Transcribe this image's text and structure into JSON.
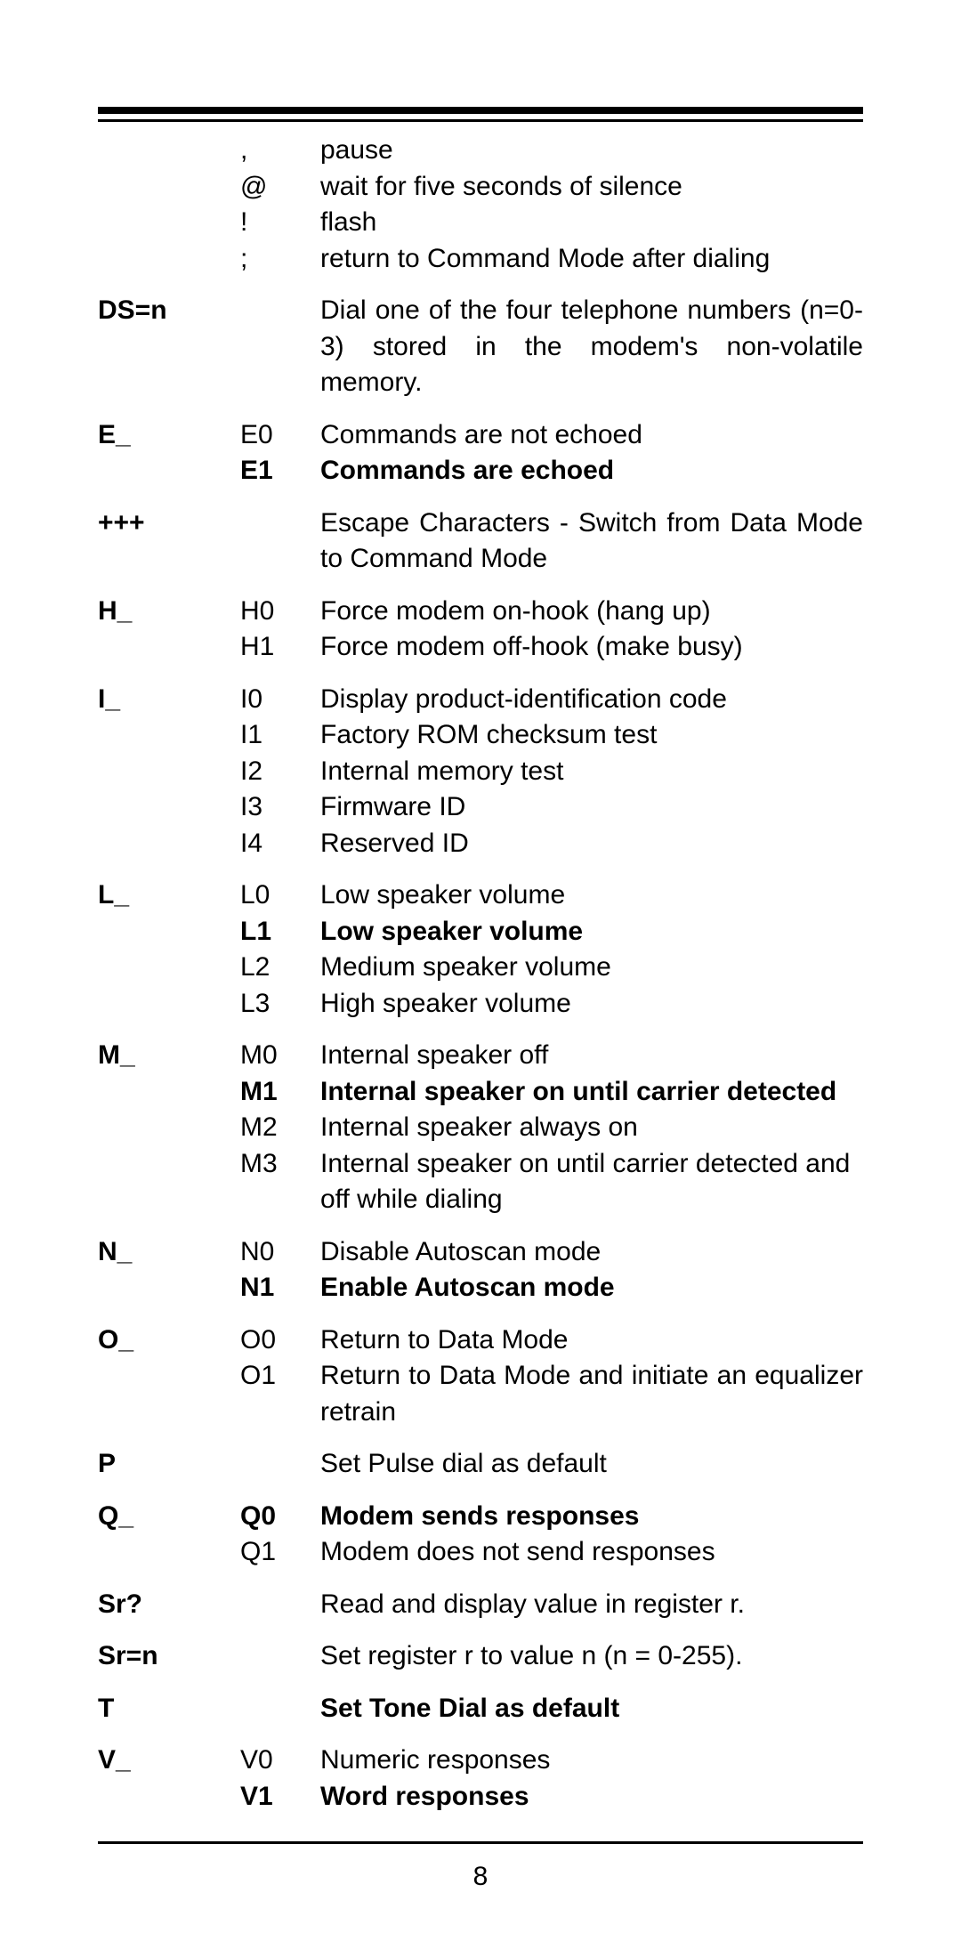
{
  "rows": [
    {
      "c1": "",
      "c2": ",",
      "c3": "pause",
      "bold": false,
      "newGroup": false
    },
    {
      "c1": "",
      "c2": "@",
      "c3": "wait for five seconds of silence",
      "bold": false,
      "newGroup": false
    },
    {
      "c1": "",
      "c2": "!",
      "c3": "flash",
      "bold": false,
      "newGroup": false
    },
    {
      "c1": "",
      "c2": ";",
      "c3": "return to Command Mode after dialing",
      "bold": false,
      "newGroup": false
    },
    {
      "c1": "DS=n",
      "c2": "",
      "c3": "Dial one of the four telephone numbers (n=0-3) stored in the modem's non-volatile memory.",
      "bold": false,
      "newGroup": true,
      "justify": true
    },
    {
      "c1": "E_",
      "c2": "E0",
      "c3": "Commands are not echoed",
      "bold": false,
      "newGroup": true
    },
    {
      "c1": "",
      "c2": "E1",
      "c3": "Commands are echoed",
      "bold": true,
      "newGroup": false
    },
    {
      "c1": "+++",
      "c2": "",
      "c3": "Escape Characters - Switch from Data Mode to Command Mode",
      "bold": false,
      "newGroup": true,
      "justify": true
    },
    {
      "c1": "H_",
      "c2": "H0",
      "c3": "Force modem on-hook (hang up)",
      "bold": false,
      "newGroup": true
    },
    {
      "c1": "",
      "c2": "H1",
      "c3": "Force modem off-hook (make busy)",
      "bold": false,
      "newGroup": false
    },
    {
      "c1": "I_",
      "c2": "I0",
      "c3": "Display product-identification code",
      "bold": false,
      "newGroup": true
    },
    {
      "c1": "",
      "c2": "I1",
      "c3": "Factory ROM checksum test",
      "bold": false,
      "newGroup": false
    },
    {
      "c1": "",
      "c2": "I2",
      "c3": "Internal memory test",
      "bold": false,
      "newGroup": false
    },
    {
      "c1": "",
      "c2": "I3",
      "c3": "Firmware ID",
      "bold": false,
      "newGroup": false
    },
    {
      "c1": "",
      "c2": "I4",
      "c3": "Reserved ID",
      "bold": false,
      "newGroup": false
    },
    {
      "c1": "L_",
      "c2": "L0",
      "c3": "Low speaker volume",
      "bold": false,
      "newGroup": true
    },
    {
      "c1": "",
      "c2": "L1",
      "c3": "Low speaker volume",
      "bold": true,
      "newGroup": false
    },
    {
      "c1": "",
      "c2": "L2",
      "c3": "Medium speaker volume",
      "bold": false,
      "newGroup": false
    },
    {
      "c1": "",
      "c2": "L3",
      "c3": "High speaker volume",
      "bold": false,
      "newGroup": false
    },
    {
      "c1": "M_",
      "c2": "M0",
      "c3": "Internal speaker off",
      "bold": false,
      "newGroup": true
    },
    {
      "c1": "",
      "c2": "M1",
      "c3": "Internal speaker on until carrier detected",
      "bold": true,
      "newGroup": false,
      "justify": true
    },
    {
      "c1": "",
      "c2": "M2",
      "c3": "Internal speaker always on",
      "bold": false,
      "newGroup": false
    },
    {
      "c1": "",
      "c2": "M3",
      "c3": "Internal speaker on until carrier detected and off while dialing",
      "bold": false,
      "newGroup": false
    },
    {
      "c1": "N_",
      "c2": "N0",
      "c3": "Disable Autoscan mode",
      "bold": false,
      "newGroup": true
    },
    {
      "c1": "",
      "c2": "N1",
      "c3": "Enable Autoscan mode",
      "bold": true,
      "newGroup": false
    },
    {
      "c1": "O_",
      "c2": "O0",
      "c3": "Return to Data Mode",
      "bold": false,
      "newGroup": true
    },
    {
      "c1": "",
      "c2": "O1",
      "c3": "Return to Data Mode and initiate an equalizer retrain",
      "bold": false,
      "newGroup": false,
      "justify": true
    },
    {
      "c1": "P",
      "c2": "",
      "c3": "Set Pulse dial as default",
      "bold": false,
      "newGroup": true
    },
    {
      "c1": "Q_",
      "c2": "Q0",
      "c3": "Modem sends responses",
      "bold": true,
      "newGroup": true
    },
    {
      "c1": "",
      "c2": "Q1",
      "c3": "Modem does not send responses",
      "bold": false,
      "newGroup": false
    },
    {
      "c1": "Sr?",
      "c2": "",
      "c3": "Read and display value in register r.",
      "bold": false,
      "newGroup": true
    },
    {
      "c1": "Sr=n",
      "c2": "",
      "c3": "Set register r to value n (n = 0-255).",
      "bold": false,
      "newGroup": true
    },
    {
      "c1": "T",
      "c2": "",
      "c3": "Set Tone Dial as default",
      "bold": true,
      "newGroup": true,
      "c1bold": true
    },
    {
      "c1": "V_",
      "c2": "V0",
      "c3": "Numeric responses",
      "bold": false,
      "newGroup": true
    },
    {
      "c1": "",
      "c2": "V1",
      "c3": "Word responses",
      "bold": true,
      "newGroup": false
    }
  ],
  "pageNumber": "8"
}
